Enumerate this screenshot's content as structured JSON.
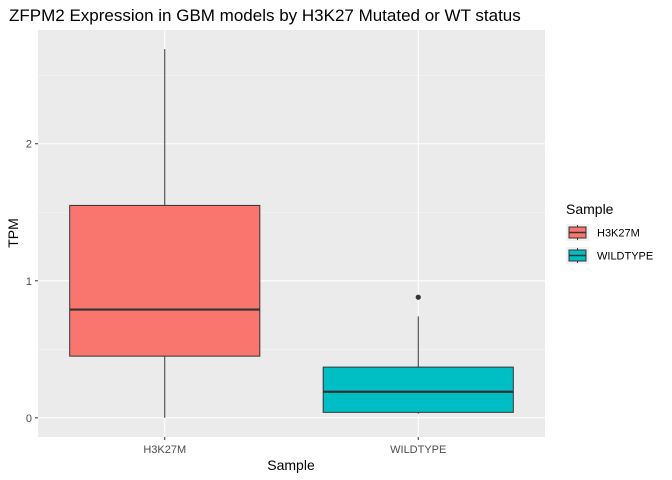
{
  "chart_data": {
    "type": "boxplot",
    "title": "ZFPM2 Expression in GBM models by H3K27 Mutated or WT status",
    "xlabel": "Sample",
    "ylabel": "TPM",
    "ylim": [
      -0.14,
      2.83
    ],
    "yticks": [
      0,
      1,
      2
    ],
    "grid": true,
    "legend": {
      "title": "Sample",
      "position": "right"
    },
    "categories": [
      "H3K27M",
      "WILDTYPE"
    ],
    "series": [
      {
        "name": "H3K27M",
        "color": "#F8766D",
        "whisker_low": 0.0,
        "q1": 0.45,
        "median": 0.79,
        "q3": 1.55,
        "whisker_high": 2.69,
        "outliers": []
      },
      {
        "name": "WILDTYPE",
        "color": "#00BFC4",
        "whisker_low": 0.03,
        "q1": 0.04,
        "median": 0.19,
        "q3": 0.37,
        "whisker_high": 0.74,
        "outliers": [
          0.88
        ]
      }
    ]
  }
}
